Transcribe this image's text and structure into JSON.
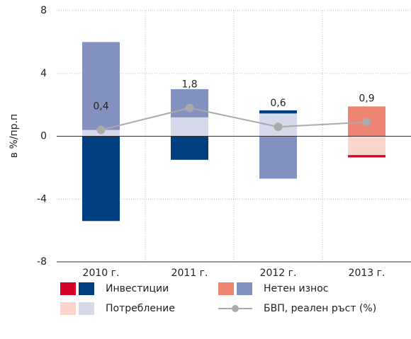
{
  "chart_data": {
    "type": "stacked_bar_line",
    "y_label": "в %/пр.п",
    "categories": [
      "2010 г.",
      "2011 г.",
      "2012 г.",
      "2013 г."
    ],
    "ylim": [
      -8,
      8
    ],
    "yticks": [
      8,
      4,
      0,
      -4,
      -8
    ],
    "grid": true,
    "series": [
      {
        "name": "Потребление",
        "colors": [
          "#d5d9ea",
          "#d5d9ea",
          "#d5d9ea",
          "#fbd5cb"
        ],
        "values": [
          0.4,
          1.2,
          1.45,
          -1.2
        ]
      },
      {
        "name": "Инвестиции",
        "colors": [
          "#003f7f",
          "#003f7f",
          "#003f7f",
          "#d4002a"
        ],
        "values": [
          -5.4,
          -1.5,
          0.2,
          -0.15
        ]
      },
      {
        "name": "Нетен износ",
        "colors": [
          "#8391c1",
          "#8391c1",
          "#8391c1",
          "#ee8573"
        ],
        "values": [
          5.6,
          1.8,
          -2.7,
          1.9
        ]
      }
    ],
    "line": {
      "name": "БВП, реален ръст (%)",
      "color": "#aaaaaa",
      "values": [
        0.4,
        1.8,
        0.6,
        0.9
      ],
      "value_labels": [
        "0,4",
        "1,8",
        "0,6",
        "0,9"
      ]
    }
  }
}
